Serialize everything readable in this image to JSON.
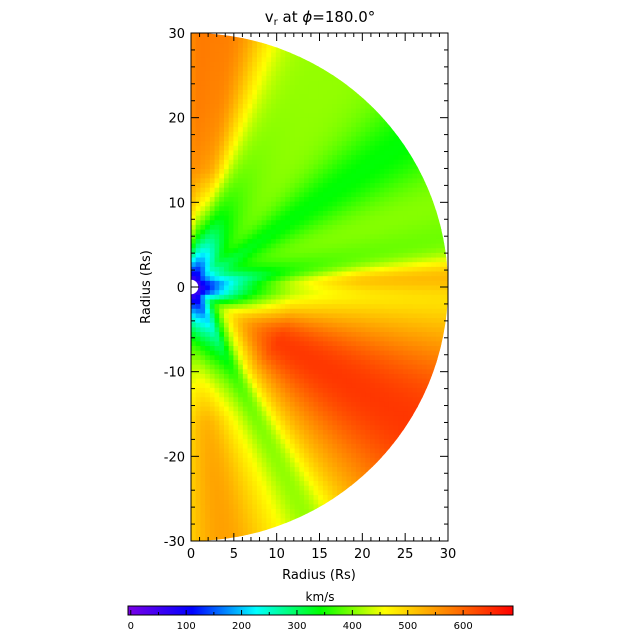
{
  "chart_data": [
    {
      "type": "heatmap",
      "title_base": "v",
      "title_sub": "r",
      "title_rest": " at ",
      "title_phi": "ϕ",
      "title_value": "=180.0°",
      "xlabel": "Radius (Rs)",
      "ylabel": "Radius (Rs)",
      "xlim": [
        0,
        30
      ],
      "ylim": [
        -30,
        30
      ],
      "x_ticks": [
        0,
        5,
        10,
        15,
        20,
        25,
        30
      ],
      "y_ticks": [
        -30,
        -20,
        -10,
        0,
        10,
        20,
        30
      ],
      "domain": "half-disk of radius 30 Rs (x >= 0)",
      "colorbar": {
        "label": "km/s",
        "range": [
          -5,
          690
        ],
        "ticks": [
          0,
          100,
          200,
          300,
          400,
          500,
          600
        ],
        "colors": [
          "#7a00e6",
          "#0000ff",
          "#00ffff",
          "#00ff00",
          "#ffff00",
          "#ff8000",
          "#ff0000"
        ]
      },
      "features": {
        "inner_boundary_radius": 1,
        "inner_slow_star_kms": 60,
        "fast_region_south_kms": 640,
        "north_region_kms": 560,
        "ambient_kms": 400
      }
    }
  ]
}
